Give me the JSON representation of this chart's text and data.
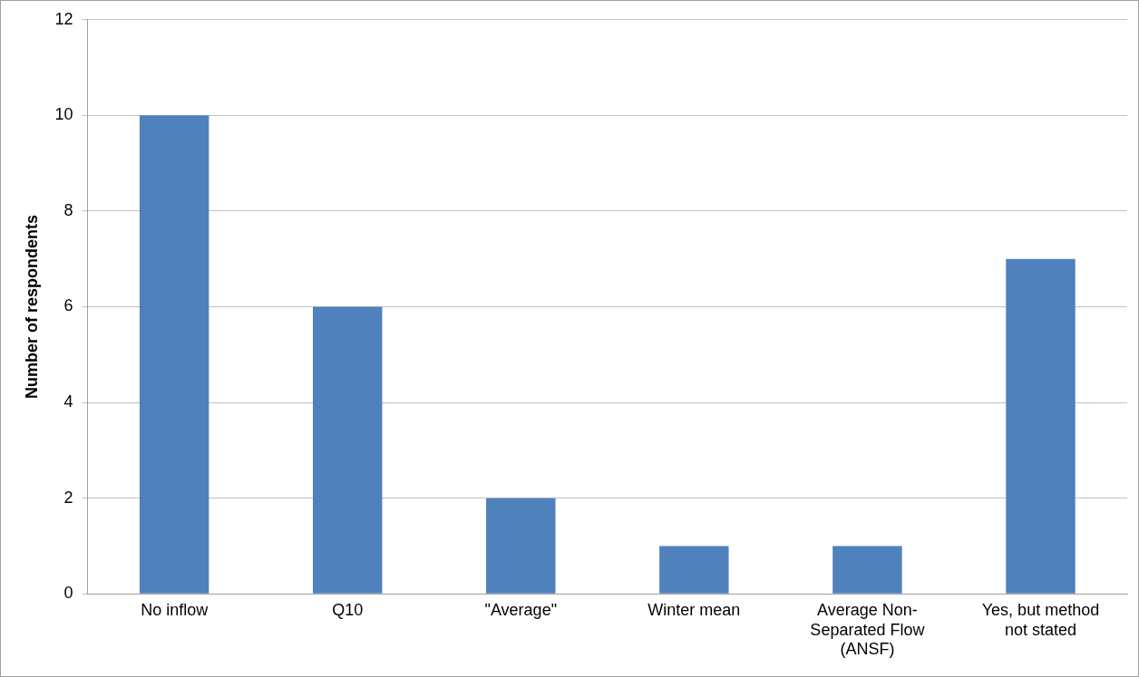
{
  "chart_data": {
    "type": "bar",
    "ylabel": "Number of respondents",
    "categories": [
      "No inflow",
      "Q10",
      "\"Average\"",
      "Winter mean",
      "Average Non-Separated Flow (ANSF)",
      "Yes, but method not stated"
    ],
    "values": [
      10,
      6,
      2,
      1,
      1,
      7
    ],
    "color": "#4f81bd",
    "ylim": [
      0,
      12
    ],
    "yticks": [
      0,
      2,
      4,
      6,
      8,
      10,
      12
    ],
    "grid": "y"
  }
}
